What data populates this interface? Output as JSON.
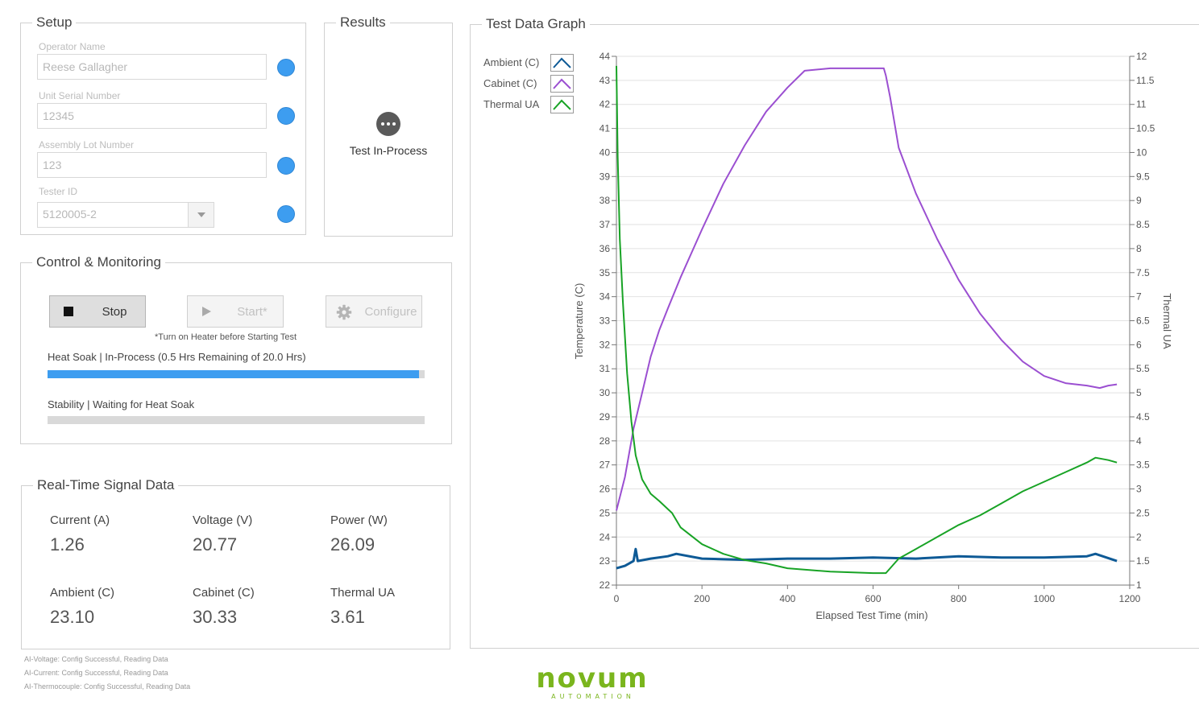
{
  "setup": {
    "title": "Setup",
    "operator_label": "Operator Name",
    "operator_value": "Reese Gallagher",
    "serial_label": "Unit Serial Number",
    "serial_value": "12345",
    "lot_label": "Assembly Lot Number",
    "lot_value": "123",
    "tester_label": "Tester ID",
    "tester_value": "5120005-2"
  },
  "results": {
    "title": "Results",
    "status_text": "Test In-Process"
  },
  "control": {
    "title": "Control & Monitoring",
    "stop_label": "Stop",
    "start_label": "Start*",
    "configure_label": "Configure",
    "note": "*Turn on Heater before Starting Test",
    "heat_soak_status": "Heat Soak |  In-Process (0.5 Hrs Remaining of 20.0 Hrs)",
    "heat_soak_progress": 0.985,
    "stability_status": "Stability |  Waiting for Heat Soak",
    "stability_progress": 0
  },
  "signals": {
    "title": "Real-Time Signal Data",
    "current_label": "Current (A)",
    "current_value": "1.26",
    "voltage_label": "Voltage (V)",
    "voltage_value": "20.77",
    "power_label": "Power (W)",
    "power_value": "26.09",
    "ambient_label": "Ambient (C)",
    "ambient_value": "23.10",
    "cabinet_label": "Cabinet (C)",
    "cabinet_value": "30.33",
    "thermal_label": "Thermal UA",
    "thermal_value": "3.61"
  },
  "footer": {
    "line1": "AI-Voltage: Config Successful, Reading Data",
    "line2": "AI-Current: Config Successful, Reading Data",
    "line3": "AI-Thermocouple: Config Successful, Reading Data"
  },
  "logo": {
    "name": "novum",
    "tagline": "AUTOMATION",
    "color": "#7ab51d"
  },
  "colors": {
    "accent": "#3d9df0",
    "ambient": "#0e5a96",
    "cabinet": "#9b4fd1",
    "thermal": "#18a325"
  },
  "chart_data": {
    "type": "line",
    "title": "Test Data Graph",
    "xlabel": "Elapsed Test Time (min)",
    "ylabel": "Temperature (C)",
    "y2label": "Thermal UA",
    "xlim": [
      0,
      1200
    ],
    "ylim": [
      22,
      44
    ],
    "y2lim": [
      1,
      12
    ],
    "x_ticks": [
      0,
      200,
      400,
      600,
      800,
      1000,
      1200
    ],
    "y_ticks": [
      22,
      23,
      24,
      25,
      26,
      27,
      28,
      29,
      30,
      31,
      32,
      33,
      34,
      35,
      36,
      37,
      38,
      39,
      40,
      41,
      42,
      43,
      44
    ],
    "y2_ticks": [
      "1",
      "1.5",
      "2",
      "2.5",
      "3",
      "3.5",
      "4",
      "4.5",
      "5",
      "5.5",
      "6",
      "6.5",
      "7",
      "7.5",
      "8",
      "8.5",
      "9",
      "9.5",
      "10",
      "10.5",
      "11",
      "11.5",
      "12"
    ],
    "grid": "horizontal",
    "legend": "top-left",
    "series": [
      {
        "name": "Ambient (C)",
        "axis": "left",
        "points": [
          [
            0,
            22.7
          ],
          [
            20,
            22.8
          ],
          [
            40,
            23.0
          ],
          [
            45,
            23.5
          ],
          [
            50,
            23.0
          ],
          [
            80,
            23.1
          ],
          [
            120,
            23.2
          ],
          [
            140,
            23.3
          ],
          [
            200,
            23.1
          ],
          [
            300,
            23.05
          ],
          [
            400,
            23.1
          ],
          [
            500,
            23.1
          ],
          [
            600,
            23.15
          ],
          [
            700,
            23.1
          ],
          [
            800,
            23.2
          ],
          [
            900,
            23.15
          ],
          [
            1000,
            23.15
          ],
          [
            1100,
            23.2
          ],
          [
            1120,
            23.3
          ],
          [
            1170,
            23.0
          ]
        ]
      },
      {
        "name": "Cabinet (C)",
        "axis": "left",
        "points": [
          [
            0,
            25.1
          ],
          [
            20,
            26.5
          ],
          [
            40,
            28.5
          ],
          [
            60,
            30.0
          ],
          [
            80,
            31.5
          ],
          [
            100,
            32.6
          ],
          [
            120,
            33.5
          ],
          [
            150,
            34.8
          ],
          [
            200,
            36.8
          ],
          [
            250,
            38.7
          ],
          [
            300,
            40.3
          ],
          [
            350,
            41.7
          ],
          [
            400,
            42.7
          ],
          [
            440,
            43.4
          ],
          [
            500,
            43.5
          ],
          [
            550,
            43.5
          ],
          [
            625,
            43.5
          ],
          [
            630,
            43.2
          ],
          [
            640,
            42.3
          ],
          [
            660,
            40.2
          ],
          [
            700,
            38.3
          ],
          [
            750,
            36.4
          ],
          [
            800,
            34.7
          ],
          [
            850,
            33.3
          ],
          [
            900,
            32.2
          ],
          [
            950,
            31.3
          ],
          [
            1000,
            30.7
          ],
          [
            1050,
            30.4
          ],
          [
            1100,
            30.3
          ],
          [
            1130,
            30.2
          ],
          [
            1150,
            30.3
          ],
          [
            1170,
            30.35
          ]
        ]
      },
      {
        "name": "Thermal UA",
        "axis": "right",
        "points": [
          [
            0,
            11.8
          ],
          [
            3,
            9.9
          ],
          [
            8,
            8.2
          ],
          [
            15,
            6.9
          ],
          [
            25,
            5.4
          ],
          [
            35,
            4.4
          ],
          [
            45,
            3.7
          ],
          [
            60,
            3.2
          ],
          [
            80,
            2.9
          ],
          [
            100,
            2.75
          ],
          [
            130,
            2.5
          ],
          [
            150,
            2.2
          ],
          [
            200,
            1.85
          ],
          [
            250,
            1.65
          ],
          [
            300,
            1.52
          ],
          [
            350,
            1.45
          ],
          [
            400,
            1.35
          ],
          [
            500,
            1.28
          ],
          [
            600,
            1.25
          ],
          [
            630,
            1.25
          ],
          [
            660,
            1.55
          ],
          [
            700,
            1.75
          ],
          [
            750,
            2.0
          ],
          [
            800,
            2.25
          ],
          [
            850,
            2.45
          ],
          [
            900,
            2.7
          ],
          [
            950,
            2.95
          ],
          [
            1000,
            3.15
          ],
          [
            1050,
            3.35
          ],
          [
            1100,
            3.55
          ],
          [
            1120,
            3.65
          ],
          [
            1150,
            3.6
          ],
          [
            1170,
            3.55
          ]
        ]
      }
    ]
  }
}
